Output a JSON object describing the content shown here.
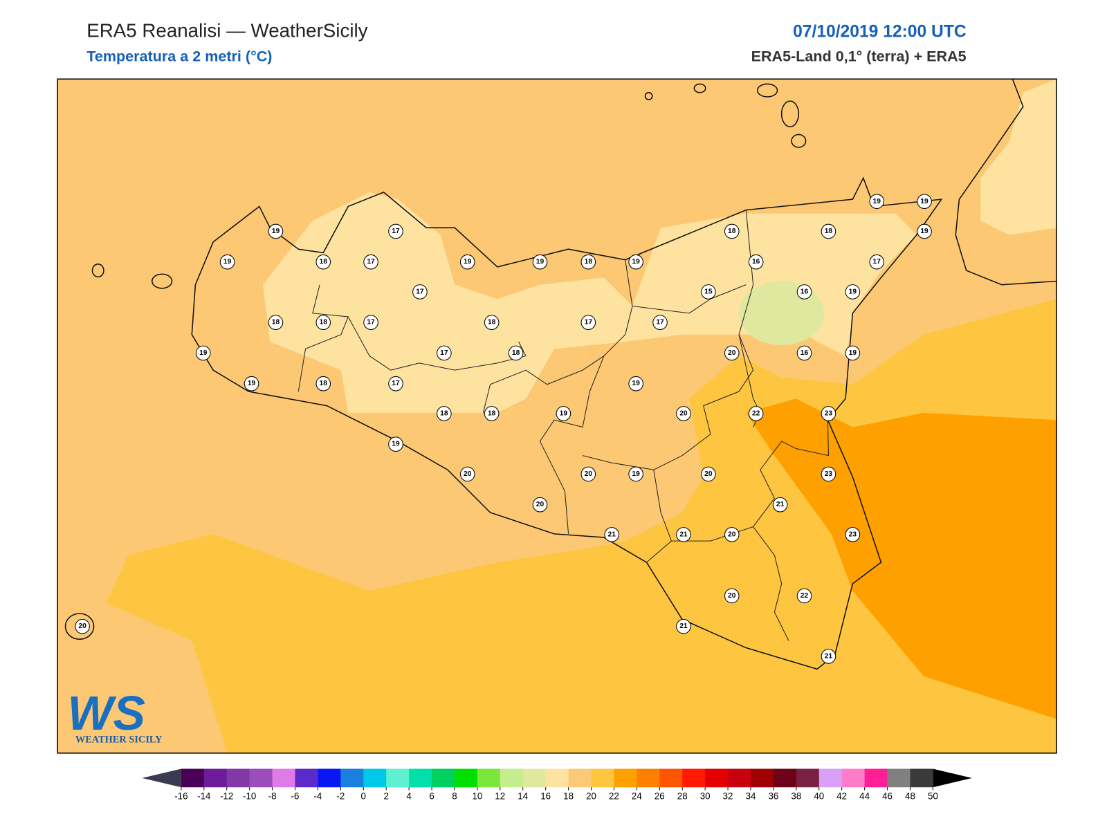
{
  "header": {
    "title": "ERA5 Reanalisi — WeatherSicily",
    "subtitle": "Temperatura a 2 metri (°C)",
    "datetime": "07/10/2019 12:00 UTC",
    "source": "ERA5-Land 0,1° (terra) + ERA5"
  },
  "stations": [
    19,
    17,
    19,
    18,
    17,
    19,
    19,
    18,
    19,
    18,
    18,
    19,
    19,
    19,
    16,
    17,
    17,
    15,
    16,
    19,
    18,
    18,
    17,
    18,
    17,
    17,
    19,
    17,
    18,
    20,
    16,
    19,
    19,
    18,
    17,
    19,
    18,
    18,
    19,
    20,
    22,
    23,
    19,
    20,
    20,
    19,
    20,
    23,
    20,
    21,
    21,
    21,
    20,
    23,
    20,
    22,
    20,
    21,
    21
  ],
  "logo": {
    "mark": "WS",
    "name": "WEATHER SICILY"
  },
  "colorbar": {
    "ticks": [
      -16,
      -14,
      -12,
      -10,
      -8,
      -6,
      -4,
      -2,
      0,
      2,
      4,
      6,
      8,
      10,
      12,
      14,
      16,
      18,
      20,
      22,
      24,
      26,
      28,
      30,
      32,
      34,
      36,
      38,
      40,
      42,
      44,
      46,
      48,
      50
    ],
    "colors": [
      "#4b0058",
      "#6c1c9a",
      "#8338a8",
      "#9c4dbd",
      "#e07ae8",
      "#5a2bc8",
      "#0a17f5",
      "#1a80e0",
      "#00c8e8",
      "#5ef0d0",
      "#00e0a8",
      "#00d060",
      "#00e000",
      "#7ae83a",
      "#c4ee8c",
      "#e0e8a0",
      "#fee3a0",
      "#fdc878",
      "#fec640",
      "#ff9f00",
      "#ff8000",
      "#ff5500",
      "#ff1a00",
      "#e40000",
      "#c80010",
      "#a00000",
      "#6e0018",
      "#7a2040",
      "#d8a0f8",
      "#ff7cc8",
      "#ff1e96",
      "#808080",
      "#3a3a3a"
    ],
    "under": "#3a3a50",
    "over": "#000000"
  }
}
